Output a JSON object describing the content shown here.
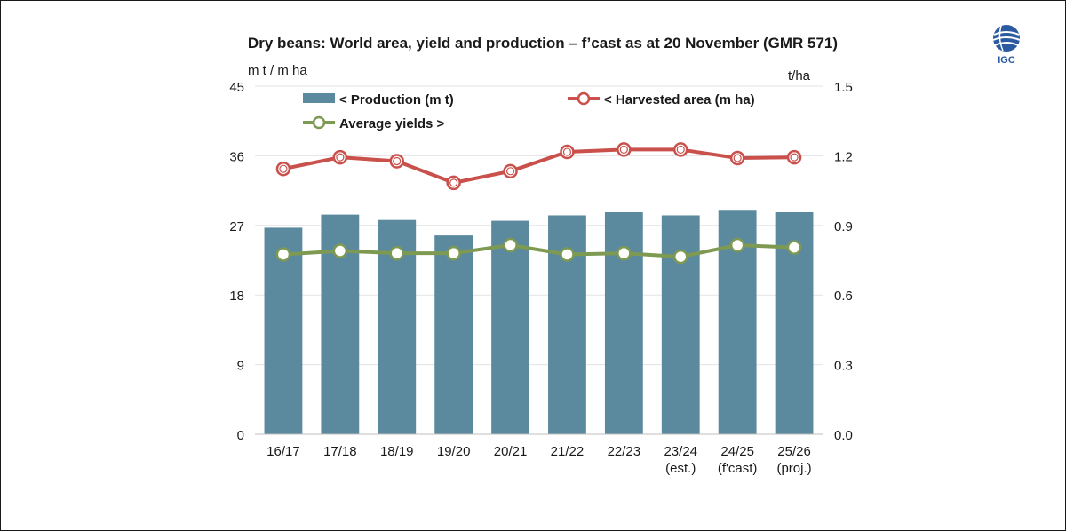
{
  "chart_data": {
    "type": "bar",
    "title": "Dry beans: World area, yield and production – f’cast as at 20 November (GMR 571)",
    "ylabel_left": "m t / m ha",
    "ylabel_right": "t/ha",
    "categories": [
      [
        "16/17"
      ],
      [
        "17/18"
      ],
      [
        "18/19"
      ],
      [
        "19/20"
      ],
      [
        "20/21"
      ],
      [
        "21/22"
      ],
      [
        "22/23"
      ],
      [
        "23/24",
        "(est.)"
      ],
      [
        "24/25",
        "(f'cast)"
      ],
      [
        "25/26",
        "(proj.)"
      ]
    ],
    "y_left": {
      "min": 0,
      "max": 45,
      "ticks": [
        "0",
        "9",
        "18",
        "27",
        "36",
        "45"
      ]
    },
    "y_right": {
      "min": 0,
      "max": 1.5,
      "ticks": [
        "0.0",
        "0.3",
        "0.6",
        "0.9",
        "1.2",
        "1.5"
      ]
    },
    "series": [
      {
        "name": "< Production (m t)",
        "type": "bar",
        "axis": "left",
        "color": "#5b8a9e",
        "values": [
          26.7,
          28.4,
          27.7,
          25.7,
          27.6,
          28.3,
          28.7,
          28.3,
          28.9,
          28.7
        ]
      },
      {
        "name": "< Harvested area (m ha)",
        "type": "line",
        "axis": "left",
        "color": "#c9504b",
        "values": [
          34.3,
          35.8,
          35.3,
          32.5,
          34.0,
          36.5,
          36.8,
          36.8,
          35.7,
          35.8
        ]
      },
      {
        "name": "Average yields >",
        "type": "line",
        "axis": "right",
        "color": "#7e9a52",
        "values": [
          0.775,
          0.79,
          0.78,
          0.78,
          0.815,
          0.775,
          0.78,
          0.765,
          0.815,
          0.805
        ]
      }
    ]
  },
  "logo": {
    "text": "IGC"
  }
}
